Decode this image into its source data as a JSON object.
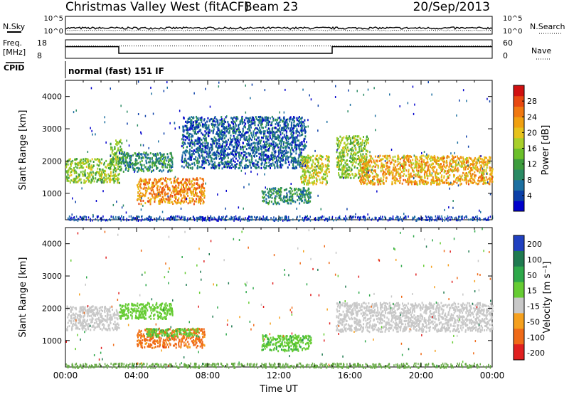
{
  "header": {
    "station": "Christmas Valley West (fitACF)",
    "beam": "Beam 23",
    "date": "20/Sep/2013"
  },
  "noise_panel": {
    "left_label": "N.Sky",
    "right_label": "N.Search",
    "left_ticks": [
      "10^5",
      "10^0"
    ],
    "right_ticks": [
      "10^5",
      "10^0"
    ]
  },
  "freq_panel": {
    "left_label_1": "Freq.",
    "left_label_2": "[MHz]",
    "right_label": "Nave",
    "left_ticks": [
      "18",
      "8"
    ],
    "right_ticks": [
      "60",
      "0"
    ],
    "freq_steps": [
      {
        "start_hour": 0.0,
        "end_hour": 3.0,
        "value": 14.3
      },
      {
        "start_hour": 3.0,
        "end_hour": 15.0,
        "value": 10.7
      },
      {
        "start_hour": 15.0,
        "end_hour": 24.0,
        "value": 14.3
      }
    ],
    "nave_level": 40
  },
  "cpid": {
    "label": "CPID",
    "mode": "normal (fast) 151 IF"
  },
  "chart_data": [
    {
      "type": "heatmap",
      "parameter": "Power",
      "ylabel": "Slant Range [km]",
      "xlabel": "",
      "xlim": [
        0,
        24
      ],
      "ylim": [
        180,
        4500
      ],
      "y_ticks": [
        "1000",
        "2000",
        "3000",
        "4000"
      ],
      "y_tick_values": [
        1000,
        2000,
        3000,
        4000
      ],
      "colorbar": {
        "label": "Power [dB]",
        "ticks": [
          "4",
          "8",
          "12",
          "16",
          "20",
          "24",
          "28"
        ],
        "tick_values": [
          4,
          8,
          12,
          16,
          20,
          24,
          28
        ],
        "range": [
          0,
          32
        ],
        "colors": [
          "#0000cc",
          "#0b3fa8",
          "#1c6fa0",
          "#2a8a64",
          "#3d9c3d",
          "#6bbf2a",
          "#a8cf2a",
          "#e6c21c",
          "#f0a010",
          "#f07810",
          "#e84810",
          "#d01010"
        ]
      },
      "scatter_regions": [
        {
          "start_hour": 0.0,
          "end_hour": 3.0,
          "range_low": 1350,
          "range_high": 2100,
          "level": 16
        },
        {
          "start_hour": 2.5,
          "end_hour": 3.2,
          "range_low": 1900,
          "range_high": 2700,
          "level": 14
        },
        {
          "start_hour": 3.0,
          "end_hour": 6.0,
          "range_low": 1700,
          "range_high": 2300,
          "level": 10
        },
        {
          "start_hour": 4.0,
          "end_hour": 7.8,
          "range_low": 700,
          "range_high": 1500,
          "level": 24
        },
        {
          "start_hour": 6.5,
          "end_hour": 13.5,
          "range_low": 1800,
          "range_high": 3400,
          "level": 6
        },
        {
          "start_hour": 11.0,
          "end_hour": 13.8,
          "range_low": 700,
          "range_high": 1200,
          "level": 10
        },
        {
          "start_hour": 13.2,
          "end_hour": 14.8,
          "range_low": 1300,
          "range_high": 2200,
          "level": 18
        },
        {
          "start_hour": 15.2,
          "end_hour": 17.0,
          "range_low": 1500,
          "range_high": 2800,
          "level": 16
        },
        {
          "start_hour": 16.5,
          "end_hour": 24.0,
          "range_low": 1300,
          "range_high": 2200,
          "level": 22
        }
      ]
    },
    {
      "type": "heatmap",
      "parameter": "Velocity",
      "ylabel": "Slant Range [km]",
      "xlabel": "Time UT",
      "xlim": [
        0,
        24
      ],
      "ylim": [
        180,
        4500
      ],
      "x_ticks": [
        "00:00",
        "04:00",
        "08:00",
        "12:00",
        "16:00",
        "20:00",
        "00:00"
      ],
      "x_tick_values": [
        0,
        4,
        8,
        12,
        16,
        20,
        24
      ],
      "y_ticks": [
        "1000",
        "2000",
        "3000",
        "4000"
      ],
      "y_tick_values": [
        1000,
        2000,
        3000,
        4000
      ],
      "colorbar": {
        "label": "Velocity [m s⁻¹]",
        "ticks": [
          "200",
          "100",
          "50",
          "15",
          "-15",
          "-50",
          "-100",
          "-200"
        ],
        "tick_values": [
          200,
          100,
          50,
          15,
          -15,
          -50,
          -100,
          -200
        ],
        "colors": [
          "#2040c0",
          "#1f7a50",
          "#2ea84a",
          "#66cc33",
          "#c8c8c8",
          "#f5a01e",
          "#ef6a18",
          "#e02020"
        ]
      },
      "scatter_regions": [
        {
          "start_hour": 0.0,
          "end_hour": 3.0,
          "range_low": 1350,
          "range_high": 2100,
          "velocity": 0
        },
        {
          "start_hour": 4.0,
          "end_hour": 7.8,
          "range_low": 800,
          "range_high": 1400,
          "velocity": -60
        },
        {
          "start_hour": 4.5,
          "end_hour": 7.5,
          "range_low": 1150,
          "range_high": 1400,
          "velocity": 40
        },
        {
          "start_hour": 3.0,
          "end_hour": 6.0,
          "range_low": 1700,
          "range_high": 2200,
          "velocity": 30
        },
        {
          "start_hour": 11.0,
          "end_hour": 13.8,
          "range_low": 700,
          "range_high": 1200,
          "velocity": 40
        },
        {
          "start_hour": 15.2,
          "end_hour": 24.0,
          "range_low": 1300,
          "range_high": 2200,
          "velocity": 0
        }
      ]
    }
  ]
}
